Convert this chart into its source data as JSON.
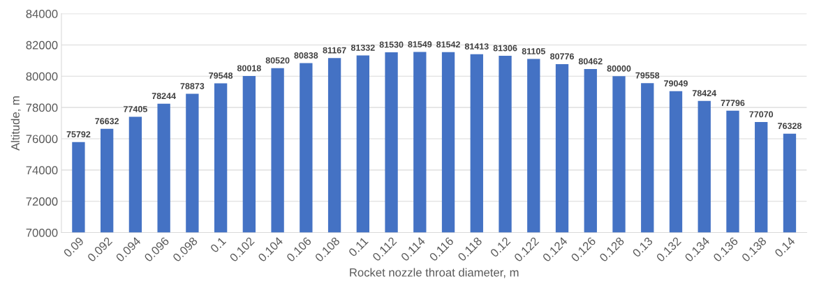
{
  "chart_data": {
    "type": "bar",
    "xlabel": "Rocket nozzle throat diameter, m",
    "ylabel": "Altitude, m",
    "categories": [
      "0.09",
      "0.092",
      "0.094",
      "0.096",
      "0.098",
      "0.1",
      "0.102",
      "0.104",
      "0.106",
      "0.108",
      "0.11",
      "0.112",
      "0.114",
      "0.116",
      "0.118",
      "0.12",
      "0.122",
      "0.124",
      "0.126",
      "0.128",
      "0.13",
      "0.132",
      "0.134",
      "0.136",
      "0.138",
      "0.14"
    ],
    "values": [
      75792,
      76632,
      77405,
      78244,
      78873,
      79548,
      80018,
      80520,
      80838,
      81167,
      81332,
      81530,
      81549,
      81542,
      81413,
      81306,
      81105,
      80776,
      80462,
      80000,
      79558,
      79049,
      78424,
      77796,
      77070,
      76328
    ],
    "color": "#4472c4",
    "ylim": [
      70000,
      84000
    ],
    "yticks": [
      70000,
      72000,
      74000,
      76000,
      78000,
      80000,
      82000,
      84000
    ],
    "grid": "y",
    "data_labels": true
  }
}
